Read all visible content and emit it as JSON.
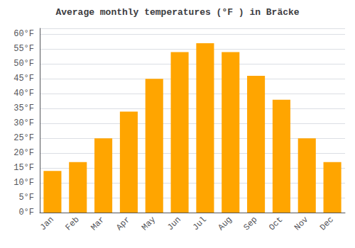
{
  "chart_data": {
    "type": "bar",
    "title": "Average monthly temperatures (°F ) in Bräcke",
    "categories": [
      "Jan",
      "Feb",
      "Mar",
      "Apr",
      "May",
      "Jun",
      "Jul",
      "Aug",
      "Sep",
      "Oct",
      "Nov",
      "Dec"
    ],
    "values": [
      14,
      17,
      25,
      34,
      45,
      54,
      57,
      54,
      46,
      38,
      25,
      17
    ],
    "color": "#FFA500",
    "ylim": [
      0,
      62
    ],
    "yticks": [
      {
        "value": 0,
        "label": "0°F"
      },
      {
        "value": 5,
        "label": "5°F"
      },
      {
        "value": 10,
        "label": "10°F"
      },
      {
        "value": 15,
        "label": "15°F"
      },
      {
        "value": 20,
        "label": "20°F"
      },
      {
        "value": 25,
        "label": "25°F"
      },
      {
        "value": 30,
        "label": "30°F"
      },
      {
        "value": 35,
        "label": "35°F"
      },
      {
        "value": 40,
        "label": "40°F"
      },
      {
        "value": 45,
        "label": "45°F"
      },
      {
        "value": 50,
        "label": "50°F"
      },
      {
        "value": 55,
        "label": "55°F"
      },
      {
        "value": 60,
        "label": "60°F"
      }
    ],
    "grid": true
  }
}
